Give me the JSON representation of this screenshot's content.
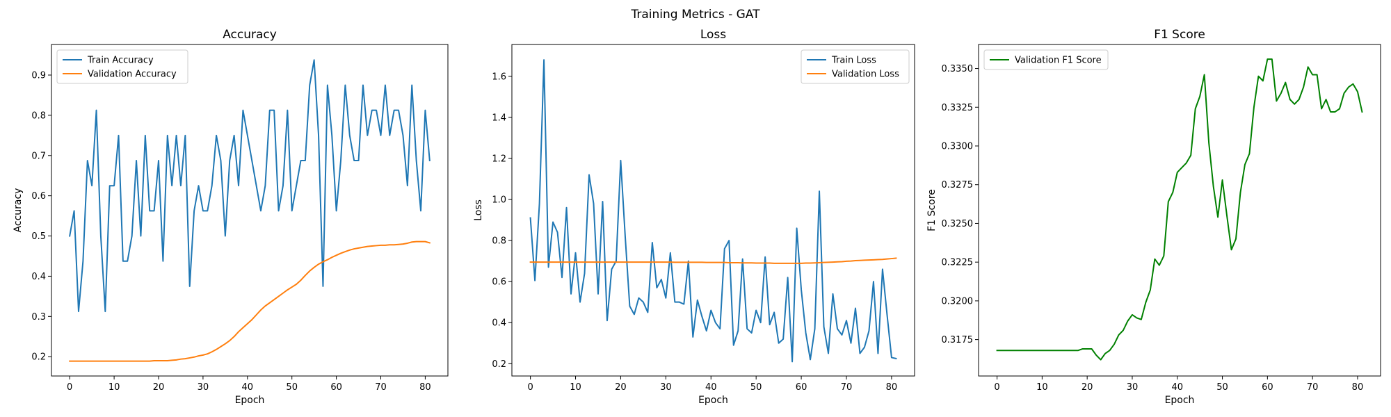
{
  "figure": {
    "title": "Training Metrics - GAT"
  },
  "chart_data": [
    {
      "type": "line",
      "title": "Accuracy",
      "xlabel": "Epoch",
      "ylabel": "Accuracy",
      "xlim": [
        -4.1,
        85.1
      ],
      "ylim": [
        0.152,
        0.976
      ],
      "xticks": [
        0,
        10,
        20,
        30,
        40,
        50,
        60,
        70,
        80
      ],
      "yticks": [
        0.2,
        0.3,
        0.4,
        0.5,
        0.6,
        0.7,
        0.8,
        0.9
      ],
      "ytick_labels": [
        "0.2",
        "0.3",
        "0.4",
        "0.5",
        "0.6",
        "0.7",
        "0.8",
        "0.9"
      ],
      "grid": false,
      "legend": "upper-left",
      "series": [
        {
          "name": "Train Accuracy",
          "color": "#1f77b4",
          "values": [
            0.5,
            0.5625,
            0.3125,
            0.4375,
            0.6875,
            0.625,
            0.8125,
            0.5,
            0.3125,
            0.625,
            0.625,
            0.75,
            0.4375,
            0.4375,
            0.5,
            0.6875,
            0.5,
            0.75,
            0.5625,
            0.5625,
            0.6875,
            0.4375,
            0.75,
            0.625,
            0.75,
            0.625,
            0.75,
            0.375,
            0.5625,
            0.625,
            0.5625,
            0.5625,
            0.625,
            0.75,
            0.6875,
            0.5,
            0.6875,
            0.75,
            0.625,
            0.8125,
            0.75,
            0.6875,
            0.625,
            0.5625,
            0.625,
            0.8125,
            0.8125,
            0.5625,
            0.625,
            0.8125,
            0.5625,
            0.625,
            0.6875,
            0.6875,
            0.875,
            0.9375,
            0.75,
            0.375,
            0.875,
            0.75,
            0.5625,
            0.6875,
            0.875,
            0.75,
            0.6875,
            0.6875,
            0.875,
            0.75,
            0.8125,
            0.8125,
            0.75,
            0.875,
            0.75,
            0.8125,
            0.8125,
            0.75,
            0.625,
            0.875,
            0.6875,
            0.5625,
            0.8125,
            0.6875
          ]
        },
        {
          "name": "Validation Accuracy",
          "color": "#ff7f0e",
          "values": [
            0.189,
            0.189,
            0.189,
            0.189,
            0.189,
            0.189,
            0.189,
            0.189,
            0.189,
            0.189,
            0.189,
            0.189,
            0.189,
            0.189,
            0.189,
            0.189,
            0.189,
            0.189,
            0.189,
            0.19,
            0.19,
            0.19,
            0.19,
            0.191,
            0.192,
            0.194,
            0.195,
            0.197,
            0.199,
            0.202,
            0.204,
            0.207,
            0.212,
            0.218,
            0.225,
            0.232,
            0.24,
            0.25,
            0.262,
            0.272,
            0.282,
            0.292,
            0.304,
            0.316,
            0.326,
            0.334,
            0.342,
            0.35,
            0.358,
            0.366,
            0.373,
            0.38,
            0.39,
            0.402,
            0.413,
            0.422,
            0.43,
            0.436,
            0.441,
            0.447,
            0.452,
            0.457,
            0.461,
            0.465,
            0.468,
            0.47,
            0.472,
            0.474,
            0.475,
            0.476,
            0.477,
            0.477,
            0.478,
            0.478,
            0.479,
            0.48,
            0.482,
            0.485,
            0.486,
            0.486,
            0.486,
            0.483
          ]
        }
      ]
    },
    {
      "type": "line",
      "title": "Loss",
      "xlabel": "Epoch",
      "ylabel": "Loss",
      "xlim": [
        -4.1,
        85.1
      ],
      "ylim": [
        0.14,
        1.755
      ],
      "xticks": [
        0,
        10,
        20,
        30,
        40,
        50,
        60,
        70,
        80
      ],
      "yticks": [
        0.2,
        0.4,
        0.6,
        0.8,
        1.0,
        1.2,
        1.4,
        1.6
      ],
      "ytick_labels": [
        "0.2",
        "0.4",
        "0.6",
        "0.8",
        "1.0",
        "1.2",
        "1.4",
        "1.6"
      ],
      "grid": false,
      "legend": "upper-right",
      "series": [
        {
          "name": "Train Loss",
          "color": "#1f77b4",
          "values": [
            0.91,
            0.605,
            0.98,
            1.68,
            0.67,
            0.89,
            0.84,
            0.62,
            0.96,
            0.54,
            0.74,
            0.5,
            0.64,
            1.12,
            0.98,
            0.54,
            0.99,
            0.41,
            0.66,
            0.7,
            1.19,
            0.82,
            0.48,
            0.44,
            0.52,
            0.5,
            0.45,
            0.79,
            0.57,
            0.61,
            0.52,
            0.74,
            0.5,
            0.5,
            0.49,
            0.7,
            0.33,
            0.51,
            0.43,
            0.36,
            0.46,
            0.4,
            0.37,
            0.76,
            0.8,
            0.29,
            0.36,
            0.71,
            0.37,
            0.35,
            0.46,
            0.4,
            0.72,
            0.39,
            0.45,
            0.3,
            0.32,
            0.62,
            0.21,
            0.86,
            0.56,
            0.35,
            0.22,
            0.37,
            1.04,
            0.38,
            0.25,
            0.54,
            0.37,
            0.34,
            0.41,
            0.3,
            0.47,
            0.25,
            0.28,
            0.36,
            0.6,
            0.25,
            0.66,
            0.44,
            0.23,
            0.225
          ]
        },
        {
          "name": "Validation Loss",
          "color": "#ff7f0e",
          "values": [
            0.695,
            0.695,
            0.695,
            0.695,
            0.695,
            0.695,
            0.695,
            0.695,
            0.695,
            0.695,
            0.695,
            0.695,
            0.695,
            0.695,
            0.695,
            0.695,
            0.695,
            0.695,
            0.695,
            0.695,
            0.695,
            0.695,
            0.695,
            0.695,
            0.695,
            0.695,
            0.695,
            0.695,
            0.695,
            0.695,
            0.695,
            0.695,
            0.694,
            0.694,
            0.694,
            0.694,
            0.694,
            0.694,
            0.694,
            0.693,
            0.693,
            0.693,
            0.693,
            0.693,
            0.692,
            0.692,
            0.692,
            0.691,
            0.691,
            0.691,
            0.69,
            0.69,
            0.69,
            0.69,
            0.689,
            0.689,
            0.689,
            0.689,
            0.689,
            0.689,
            0.689,
            0.69,
            0.69,
            0.691,
            0.692,
            0.693,
            0.694,
            0.695,
            0.696,
            0.697,
            0.699,
            0.7,
            0.702,
            0.703,
            0.704,
            0.705,
            0.706,
            0.707,
            0.708,
            0.71,
            0.712,
            0.714
          ]
        }
      ]
    },
    {
      "type": "line",
      "title": "F1 Score",
      "xlabel": "Epoch",
      "ylabel": "F1 Score",
      "xlim": [
        -4.1,
        85.1
      ],
      "ylim": [
        0.31515,
        0.33655
      ],
      "xticks": [
        0,
        10,
        20,
        30,
        40,
        50,
        60,
        70,
        80
      ],
      "yticks": [
        0.3175,
        0.32,
        0.3225,
        0.325,
        0.3275,
        0.33,
        0.3325,
        0.335
      ],
      "ytick_labels": [
        "0.3175",
        "0.3200",
        "0.3225",
        "0.3250",
        "0.3275",
        "0.3300",
        "0.3325",
        "0.3350"
      ],
      "grid": false,
      "legend": "upper-left",
      "series": [
        {
          "name": "Validation F1 Score",
          "color": "#008000",
          "values": [
            0.3168,
            0.3168,
            0.3168,
            0.3168,
            0.3168,
            0.3168,
            0.3168,
            0.3168,
            0.3168,
            0.3168,
            0.3168,
            0.3168,
            0.3168,
            0.3168,
            0.3168,
            0.3168,
            0.3168,
            0.3168,
            0.3168,
            0.3169,
            0.3169,
            0.3169,
            0.3165,
            0.3162,
            0.3166,
            0.3168,
            0.3172,
            0.3178,
            0.3181,
            0.3187,
            0.3191,
            0.3189,
            0.3188,
            0.3199,
            0.3207,
            0.3227,
            0.3223,
            0.3229,
            0.3264,
            0.327,
            0.3283,
            0.3286,
            0.3289,
            0.3294,
            0.3324,
            0.3332,
            0.3346,
            0.3302,
            0.3274,
            0.3254,
            0.3278,
            0.3255,
            0.3233,
            0.324,
            0.327,
            0.3288,
            0.3295,
            0.3325,
            0.3345,
            0.3342,
            0.3356,
            0.3356,
            0.3329,
            0.3334,
            0.3341,
            0.333,
            0.3327,
            0.333,
            0.3338,
            0.3351,
            0.3346,
            0.3346,
            0.3324,
            0.333,
            0.3322,
            0.3322,
            0.3324,
            0.3334,
            0.3338,
            0.334,
            0.3335,
            0.3322
          ]
        }
      ]
    }
  ]
}
